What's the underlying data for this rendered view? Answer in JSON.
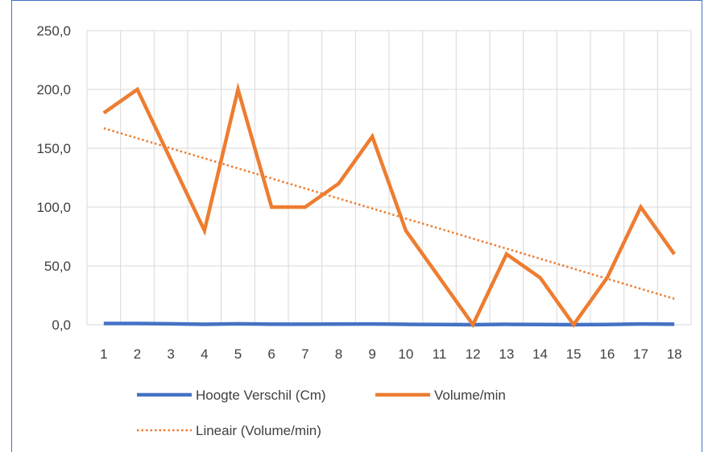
{
  "chart_data": {
    "type": "line",
    "categories": [
      "1",
      "2",
      "3",
      "4",
      "5",
      "6",
      "7",
      "8",
      "9",
      "10",
      "11",
      "12",
      "13",
      "14",
      "15",
      "16",
      "17",
      "18"
    ],
    "ylim": [
      0,
      250
    ],
    "y_ticks": [
      "0,0",
      "50,0",
      "100,0",
      "150,0",
      "200,0",
      "250,0"
    ],
    "y_tick_values": [
      0,
      50,
      100,
      150,
      200,
      250
    ],
    "grid": true,
    "legend_position": "bottom",
    "series": [
      {
        "name": "Hoogte Verschil (Cm)",
        "color": "#4472c4",
        "style": "solid",
        "values": [
          1,
          1,
          0.8,
          0.3,
          0.8,
          0.4,
          0.4,
          0.5,
          0.6,
          0.3,
          0.2,
          0,
          0.3,
          0.2,
          0,
          0.2,
          0.6,
          0.4
        ]
      },
      {
        "name": "Volume/min",
        "color": "#ed7d31",
        "style": "solid",
        "values": [
          180,
          200,
          140,
          80,
          200,
          100,
          100,
          120,
          160,
          80,
          40,
          0,
          60,
          40,
          0,
          40,
          100,
          60
        ]
      }
    ],
    "trendline": {
      "name": "Lineair (Volume/min)",
      "color": "#ed7d31",
      "style": "dotted",
      "start": 167,
      "end": 22
    }
  }
}
